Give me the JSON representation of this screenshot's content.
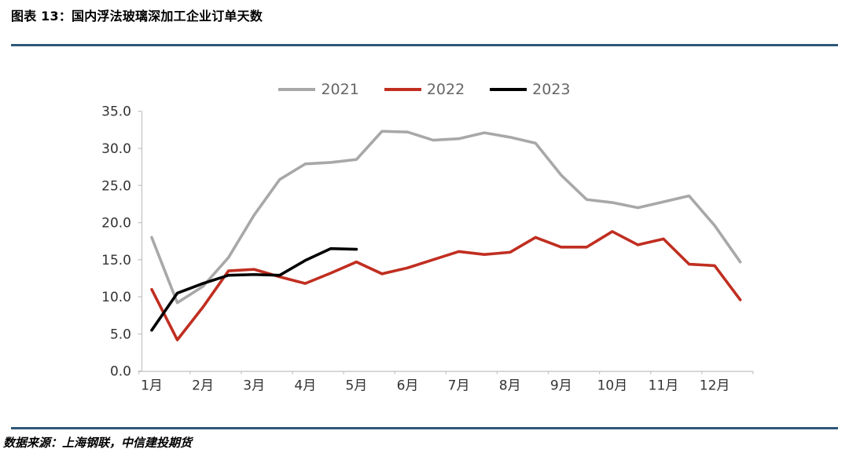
{
  "header": {
    "title": "图表 13：国内浮法玻璃深加工企业订单天数"
  },
  "footer": {
    "source": "数据来源：上海钢联，中信建投期货"
  },
  "colors": {
    "divider": "#2F5878",
    "legend_text": "#666666",
    "axis_text": "#333333",
    "axis_line": "#C6C6C6"
  },
  "chart_data": {
    "type": "line",
    "title": "国内浮法玻璃深加工企业订单天数",
    "xlabel": "",
    "ylabel": "",
    "ylim": [
      0,
      35
    ],
    "ytick_step": 5,
    "grid": false,
    "legend_position": "top",
    "x": [
      1,
      1.5,
      2,
      2.5,
      3,
      3.5,
      4,
      4.5,
      5,
      5.5,
      6,
      6.5,
      7,
      7.5,
      8,
      8.5,
      9,
      9.5,
      10,
      10.5,
      11,
      11.5,
      12,
      12.5
    ],
    "x_tick_labels": [
      "1月",
      "2月",
      "3月",
      "4月",
      "5月",
      "6月",
      "7月",
      "8月",
      "9月",
      "10月",
      "11月",
      "12月"
    ],
    "series": [
      {
        "name": "2021",
        "color": "#A8A8A8",
        "values": [
          18.0,
          9.2,
          11.4,
          15.3,
          21.0,
          25.8,
          27.9,
          28.1,
          28.5,
          32.3,
          32.2,
          31.1,
          31.3,
          32.1,
          31.5,
          30.7,
          26.4,
          23.1,
          22.7,
          22.0,
          22.8,
          23.6,
          19.6,
          14.7
        ]
      },
      {
        "name": "2022",
        "color": "#C02E20",
        "values": [
          11.0,
          4.2,
          8.6,
          13.5,
          13.7,
          12.7,
          11.8,
          13.2,
          14.7,
          13.1,
          13.9,
          15.0,
          16.1,
          15.7,
          16.0,
          18.0,
          16.7,
          16.7,
          18.8,
          17.0,
          17.8,
          14.4,
          14.2,
          9.6
        ]
      },
      {
        "name": "2023",
        "color": "#000000",
        "values": [
          5.5,
          10.5,
          11.8,
          12.9,
          13.0,
          12.9,
          14.9,
          16.5,
          16.4
        ]
      }
    ]
  }
}
